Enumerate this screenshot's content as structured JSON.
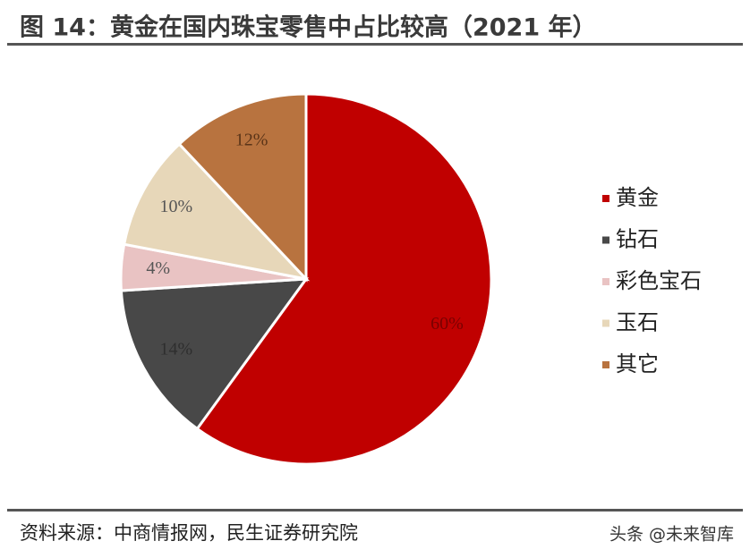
{
  "chart_data": {
    "type": "pie",
    "title": "图 14：黄金在国内珠宝零售中占比较高（2021 年）",
    "categories": [
      "黄金",
      "钻石",
      "彩色宝石",
      "玉石",
      "其它"
    ],
    "values": [
      60,
      14,
      4,
      10,
      12
    ],
    "value_labels": [
      "60%",
      "14%",
      "4%",
      "10%",
      "12%"
    ],
    "colors": [
      "#C00000",
      "#484848",
      "#E9C3C3",
      "#E7D7B9",
      "#B8733F"
    ],
    "legend": "right",
    "source": "资料来源：中商情报网，民生证券研究院",
    "watermark": "头条 @未来智库"
  }
}
